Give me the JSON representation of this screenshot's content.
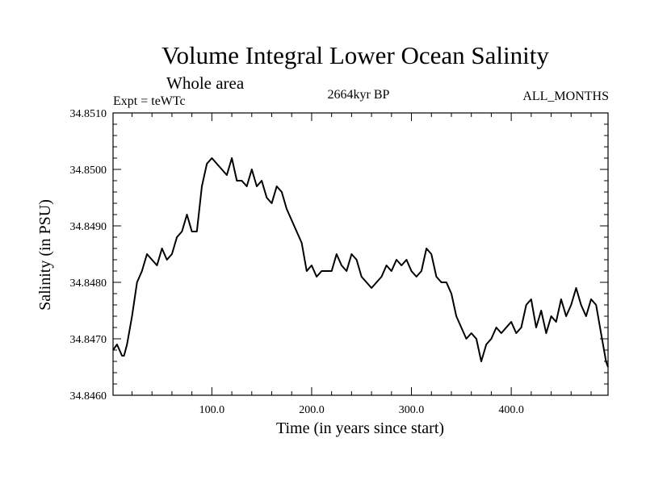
{
  "chart_data": {
    "type": "line",
    "title": "Volume Integral Lower Ocean Salinity",
    "subtitle": "Whole area",
    "left_note": "Expt = teWTc",
    "center_note": "2664kyr BP",
    "right_note": "ALL_MONTHS",
    "xlabel": "Time (in years since start)",
    "ylabel": "Salinity (in PSU)",
    "xlim": [
      1,
      497
    ],
    "ylim": [
      34.846,
      34.851
    ],
    "x_ticks": [
      100,
      200,
      300,
      400
    ],
    "x_tick_labels": [
      "100.0",
      "200.0",
      "300.0",
      "400.0"
    ],
    "y_ticks": [
      34.846,
      34.847,
      34.848,
      34.849,
      34.85,
      34.851
    ],
    "y_tick_labels": [
      "34.8460",
      "34.8470",
      "34.8480",
      "34.8490",
      "34.8500",
      "34.8510"
    ],
    "x": [
      1,
      5,
      10,
      12,
      15,
      20,
      25,
      30,
      35,
      40,
      45,
      50,
      55,
      60,
      65,
      70,
      75,
      80,
      85,
      90,
      95,
      100,
      105,
      110,
      115,
      120,
      125,
      130,
      135,
      140,
      145,
      150,
      155,
      160,
      165,
      170,
      175,
      180,
      185,
      190,
      195,
      200,
      205,
      210,
      215,
      220,
      225,
      230,
      235,
      240,
      245,
      250,
      255,
      260,
      265,
      270,
      275,
      280,
      285,
      290,
      295,
      300,
      305,
      310,
      315,
      320,
      325,
      330,
      335,
      340,
      345,
      350,
      355,
      360,
      365,
      370,
      375,
      380,
      385,
      390,
      395,
      400,
      405,
      410,
      415,
      420,
      425,
      430,
      435,
      440,
      445,
      450,
      455,
      460,
      465,
      470,
      475,
      480,
      485,
      490,
      495,
      497
    ],
    "series": [
      {
        "name": "Volume Integral Lower Ocean Salinity",
        "values": [
          34.8468,
          34.8469,
          34.8467,
          34.8467,
          34.8469,
          34.8474,
          34.848,
          34.8482,
          34.8485,
          34.8484,
          34.8483,
          34.8486,
          34.8484,
          34.8485,
          34.8488,
          34.8489,
          34.8492,
          34.8489,
          34.8489,
          34.8497,
          34.8501,
          34.8502,
          34.8501,
          34.85,
          34.8499,
          34.8502,
          34.8498,
          34.8498,
          34.8497,
          34.85,
          34.8497,
          34.8498,
          34.8495,
          34.8494,
          34.8497,
          34.8496,
          34.8493,
          34.8491,
          34.8489,
          34.8487,
          34.8482,
          34.8483,
          34.8481,
          34.8482,
          34.8482,
          34.8482,
          34.8485,
          34.8483,
          34.8482,
          34.8485,
          34.8484,
          34.8481,
          34.848,
          34.8479,
          34.848,
          34.8481,
          34.8483,
          34.8482,
          34.8484,
          34.8483,
          34.8484,
          34.8482,
          34.8481,
          34.8482,
          34.8486,
          34.8485,
          34.8481,
          34.848,
          34.848,
          34.8478,
          34.8474,
          34.8472,
          34.847,
          34.8471,
          34.847,
          34.8466,
          34.8469,
          34.847,
          34.8472,
          34.8471,
          34.8472,
          34.8473,
          34.8471,
          34.8472,
          34.8476,
          34.8477,
          34.8472,
          34.8475,
          34.8471,
          34.8474,
          34.8473,
          34.8477,
          34.8474,
          34.8476,
          34.8479,
          34.8476,
          34.8474,
          34.8477,
          34.8476,
          34.8471,
          34.8466,
          34.8465
        ]
      }
    ]
  }
}
